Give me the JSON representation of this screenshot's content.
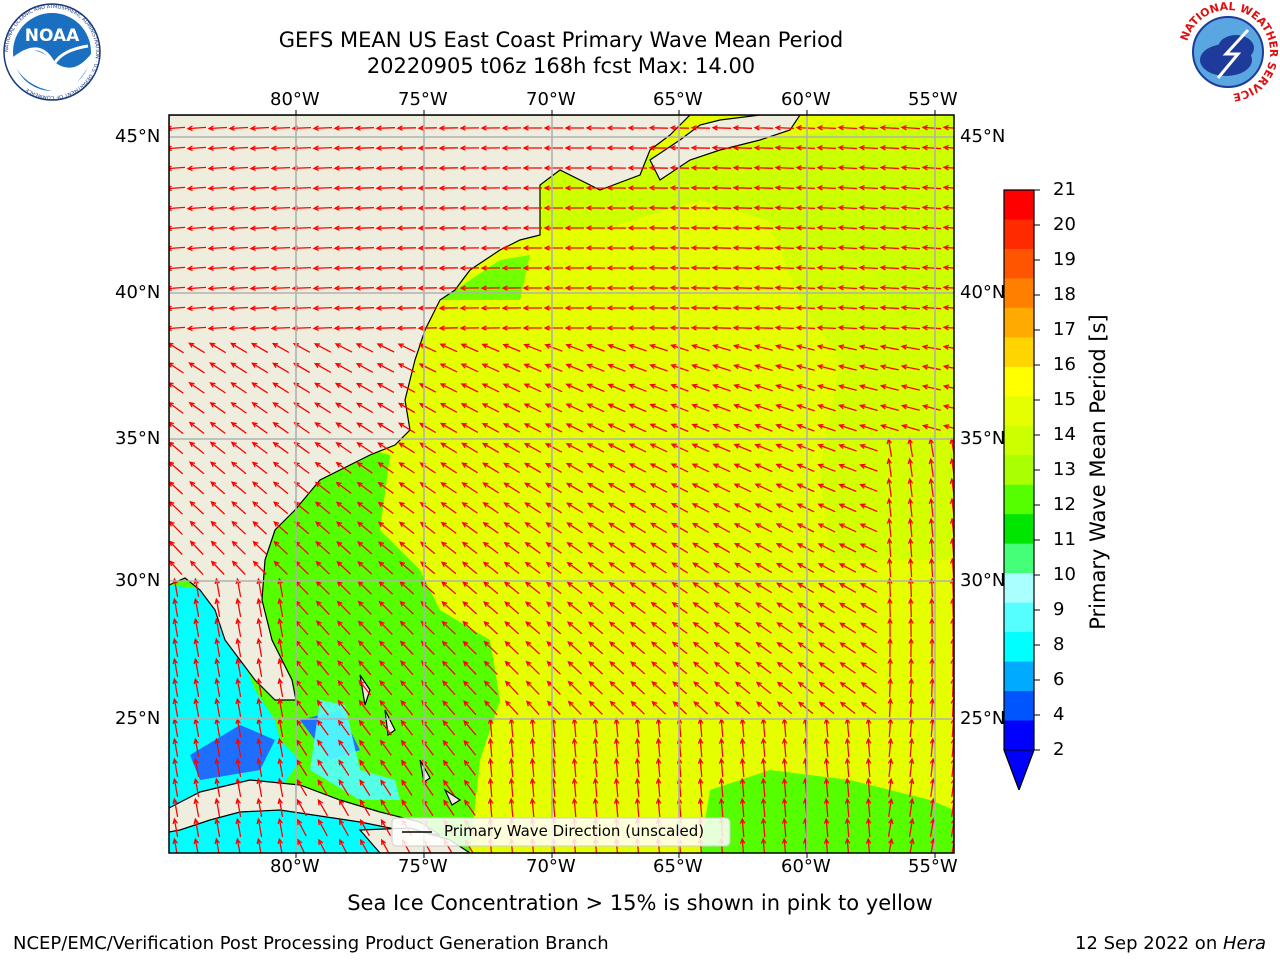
{
  "title": {
    "line1": "GEFS MEAN US East Coast Primary Wave Mean Period",
    "line2": "20220905 t06z 168h fcst   Max: 14.00"
  },
  "logos": {
    "left": "NOAA",
    "left_ring": "NATIONAL OCEANIC AND ATMOSPHERIC ADMINISTRATION · U.S. DEPARTMENT OF COMMERCE",
    "right_ring": "NATIONAL WEATHER SERVICE"
  },
  "map": {
    "lon_labels": [
      "80°W",
      "75°W",
      "70°W",
      "65°W",
      "60°W",
      "55°W"
    ],
    "lat_labels": [
      "45°N",
      "40°N",
      "35°N",
      "30°N",
      "25°N"
    ],
    "legend_label": "Primary Wave Direction (unscaled)",
    "arrow_color": "#ff0000",
    "land_color": "#efeede"
  },
  "colorbar": {
    "label": "Primary Wave Mean Period [s]",
    "ticks": [
      "21",
      "20",
      "19",
      "18",
      "17",
      "16",
      "15",
      "14",
      "13",
      "12",
      "11",
      "10",
      "9",
      "8",
      "6",
      "4",
      "2"
    ],
    "colors": [
      "#ff0000",
      "#ff2a00",
      "#ff5500",
      "#ff7f00",
      "#ffaa00",
      "#ffd400",
      "#ffff00",
      "#e6ff00",
      "#ccff00",
      "#aaff00",
      "#55ff00",
      "#00e600",
      "#44ff77",
      "#aaffff",
      "#55ffff",
      "#00ffff",
      "#00aaff",
      "#0055ff",
      "#0000ff"
    ]
  },
  "footer": {
    "note": "Sea Ice Concentration > 15% is shown in pink to yellow",
    "left": "NCEP/EMC/Verification Post Processing Product Generation Branch",
    "date": "12 Sep 2022 on ",
    "machine": "Hera"
  }
}
